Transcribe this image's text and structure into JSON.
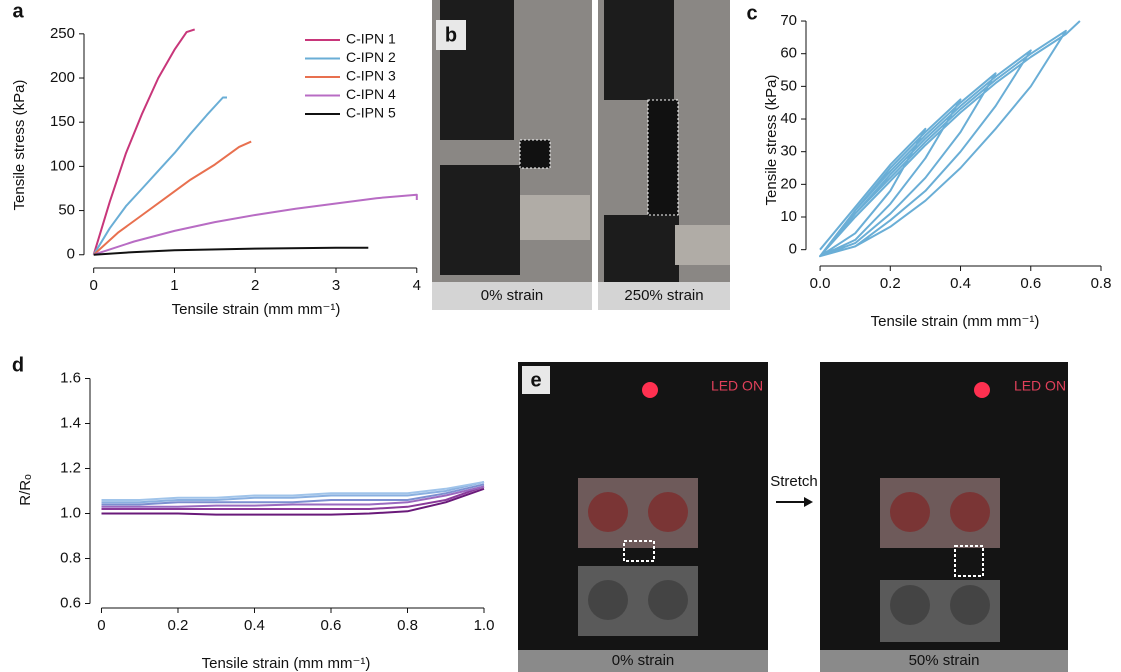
{
  "chart_data": [
    {
      "type": "line",
      "label": "a",
      "x_label": "Tensile strain (mm mm⁻¹)",
      "y_label": "Tensile stress (kPa)",
      "xlim": [
        -0.12,
        4.04
      ],
      "ylim": [
        -15,
        260
      ],
      "xticks": [
        0,
        1,
        2,
        3,
        4
      ],
      "yticks": [
        0,
        50,
        100,
        150,
        200,
        250
      ],
      "legend": "top-right",
      "series": [
        {
          "name": "C-IPN 1",
          "color": "#c8367a",
          "x": [
            0,
            0.2,
            0.4,
            0.6,
            0.8,
            1.0,
            1.15,
            1.25
          ],
          "values": [
            0,
            60,
            115,
            160,
            200,
            232,
            252,
            255
          ]
        },
        {
          "name": "C-IPN 2",
          "color": "#6aaed6",
          "x": [
            0,
            0.2,
            0.4,
            0.6,
            0.8,
            1.0,
            1.2,
            1.4,
            1.6,
            1.65
          ],
          "values": [
            0,
            30,
            55,
            75,
            95,
            115,
            137,
            158,
            178,
            178
          ]
        },
        {
          "name": "C-IPN 3",
          "color": "#e8704f",
          "x": [
            0,
            0.3,
            0.6,
            0.9,
            1.2,
            1.5,
            1.8,
            1.95
          ],
          "values": [
            0,
            25,
            45,
            65,
            85,
            102,
            122,
            128
          ]
        },
        {
          "name": "C-IPN 4",
          "color": "#b86cc4",
          "x": [
            0,
            0.5,
            1,
            1.5,
            2,
            2.5,
            3,
            3.5,
            4,
            4
          ],
          "values": [
            0,
            15,
            27,
            37,
            45,
            52,
            58,
            64,
            68,
            62
          ]
        },
        {
          "name": "C-IPN 5",
          "color": "#111111",
          "x": [
            0,
            0.5,
            1,
            2,
            3,
            3.4
          ],
          "values": [
            0,
            3,
            5,
            7,
            8,
            8
          ]
        }
      ]
    },
    {
      "type": "line",
      "label": "c",
      "x_label": "Tensile strain (mm mm⁻¹)",
      "y_label": "Tensile stress (kPa)",
      "xlim": [
        -0.04,
        0.8
      ],
      "ylim": [
        -5,
        72
      ],
      "xticks": [
        {
          "value": 0,
          "label": "0.0"
        },
        0.2,
        0.4,
        0.6,
        0.8
      ],
      "yticks": [
        0,
        10,
        20,
        30,
        40,
        50,
        60,
        70
      ],
      "color": "#6aaed6",
      "x": [
        0,
        0.1,
        0.2,
        0.3,
        0.2,
        0.1,
        0,
        0.1,
        0.2,
        0.3,
        0.4,
        0.3,
        0.2,
        0.1,
        0,
        0.1,
        0.2,
        0.3,
        0.4,
        0.5,
        0.4,
        0.3,
        0.2,
        0.1,
        0,
        0.1,
        0.2,
        0.3,
        0.4,
        0.5,
        0.6,
        0.5,
        0.4,
        0.3,
        0.2,
        0.1,
        0,
        0.1,
        0.2,
        0.3,
        0.4,
        0.5,
        0.6,
        0.7,
        0.6,
        0.5,
        0.4,
        0.3,
        0.2,
        0.1,
        0,
        0.1,
        0.2,
        0.3,
        0.4,
        0.5,
        0.6,
        0.7,
        0.74
      ],
      "values": [
        0,
        13,
        26,
        37,
        18,
        5,
        -2,
        12,
        25,
        36,
        46,
        28,
        14,
        3,
        -2,
        12,
        24,
        35,
        45,
        54,
        36,
        22,
        11,
        2,
        -2,
        11,
        23,
        34,
        44,
        53,
        61,
        44,
        30,
        18,
        9,
        1,
        -2,
        11,
        22,
        33,
        43,
        52,
        60,
        67,
        50,
        37,
        25,
        15,
        7,
        1,
        -2,
        10,
        21,
        32,
        42,
        51,
        59,
        66,
        70
      ]
    },
    {
      "type": "line",
      "label": "d",
      "x_label": "Tensile strain (mm mm⁻¹)",
      "y_label": "R/Rₒ",
      "xlim": [
        -0.03,
        1.0
      ],
      "ylim": [
        0.58,
        1.62
      ],
      "xticks": [
        0,
        0.2,
        0.4,
        0.6,
        0.8,
        {
          "value": 1.0,
          "label": "1.0"
        }
      ],
      "yticks": [
        0.6,
        0.8,
        {
          "value": 1.0,
          "label": "1.0"
        },
        1.2,
        1.4,
        1.6
      ],
      "x": [
        0,
        0.1,
        0.2,
        0.3,
        0.4,
        0.5,
        0.6,
        0.7,
        0.8,
        0.9,
        1.0
      ],
      "series": [
        {
          "color": "#6a1a7a",
          "values": [
            1.0,
            1.0,
            1.0,
            0.995,
            0.995,
            0.995,
            0.995,
            1.0,
            1.01,
            1.05,
            1.11
          ]
        },
        {
          "color": "#8a3a9a",
          "values": [
            1.02,
            1.02,
            1.02,
            1.02,
            1.02,
            1.02,
            1.02,
            1.02,
            1.03,
            1.06,
            1.12
          ]
        },
        {
          "color": "#9a6ac0",
          "values": [
            1.03,
            1.03,
            1.03,
            1.035,
            1.035,
            1.04,
            1.04,
            1.04,
            1.05,
            1.08,
            1.12
          ]
        },
        {
          "color": "#7c8fd0",
          "values": [
            1.04,
            1.04,
            1.05,
            1.05,
            1.05,
            1.05,
            1.06,
            1.06,
            1.06,
            1.09,
            1.13
          ]
        },
        {
          "color": "#8ab0e0",
          "values": [
            1.05,
            1.05,
            1.06,
            1.06,
            1.07,
            1.07,
            1.08,
            1.08,
            1.08,
            1.1,
            1.14
          ]
        },
        {
          "color": "#a0c4ea",
          "values": [
            1.06,
            1.06,
            1.07,
            1.07,
            1.08,
            1.08,
            1.09,
            1.09,
            1.09,
            1.11,
            1.14
          ]
        }
      ]
    }
  ],
  "panels": [
    {
      "label": "b",
      "photos": [
        {
          "caption": "0% strain"
        },
        {
          "caption": "250% strain"
        }
      ]
    },
    {
      "label": "e",
      "arrow_label": "Stretch",
      "photos": [
        {
          "caption": "0% strain",
          "overlay": "LED ON"
        },
        {
          "caption": "50% strain",
          "overlay": "LED ON"
        }
      ]
    }
  ]
}
